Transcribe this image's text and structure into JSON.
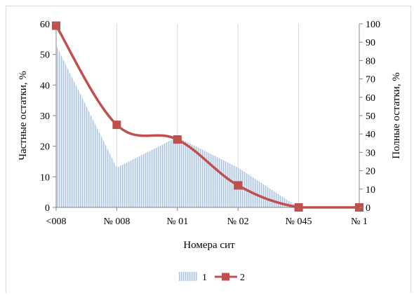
{
  "chart_data": {
    "type": "area+line",
    "categories": [
      "<008",
      "№ 008",
      "№ 01",
      "№ 02",
      "№ 045",
      "№ 1"
    ],
    "xlabel": "Номера сит",
    "ylabel_left": "Частные остатки, %",
    "ylabel_right": "Полные остатки, %",
    "ylim_left": [
      0,
      60
    ],
    "yticks_left": [
      "0",
      "10",
      "20",
      "30",
      "40",
      "50",
      "60"
    ],
    "ylim_right": [
      0,
      100
    ],
    "yticks_right": [
      "0",
      "10",
      "20",
      "30",
      "40",
      "50",
      "60",
      "70",
      "80",
      "90",
      "100"
    ],
    "grid": "vertical",
    "legend_position": "bottom",
    "series": [
      {
        "name": "1",
        "type": "area",
        "axis": "left",
        "color": "#c6d9ec",
        "values": [
          53,
          13,
          23,
          13,
          0,
          0
        ]
      },
      {
        "name": "2",
        "type": "line",
        "axis": "right",
        "color": "#c0504d",
        "values": [
          99,
          45,
          37,
          12,
          0,
          0
        ]
      }
    ]
  }
}
